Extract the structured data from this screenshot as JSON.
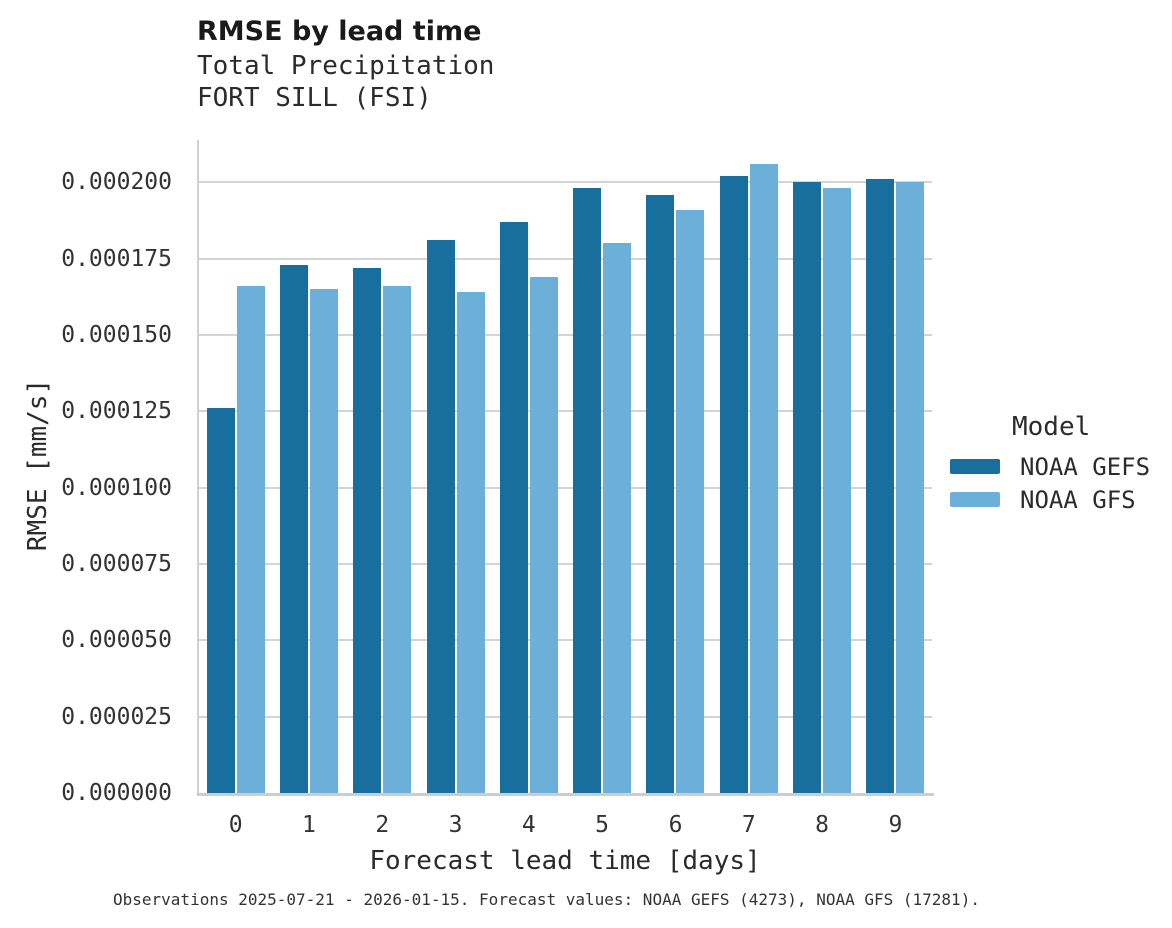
{
  "chart_data": {
    "type": "bar",
    "title": "RMSE by lead time",
    "subtitle": [
      "Total Precipitation",
      "FORT SILL (FSI)"
    ],
    "xlabel": "Forecast lead time [days]",
    "ylabel": "RMSE [mm/s]",
    "caption": "Observations 2025-07-21 - 2026-01-15. Forecast values: NOAA GEFS (4273), NOAA GFS (17281).",
    "categories": [
      "0",
      "1",
      "2",
      "3",
      "4",
      "5",
      "6",
      "7",
      "8",
      "9"
    ],
    "series": [
      {
        "name": "NOAA GEFS",
        "color": "#186e9c",
        "values": [
          0.000126,
          0.000173,
          0.000172,
          0.000181,
          0.000187,
          0.000198,
          0.000196,
          0.000202,
          0.0002,
          0.000201
        ]
      },
      {
        "name": "NOAA GFS",
        "color": "#6cb0d9",
        "values": [
          0.000166,
          0.000165,
          0.000166,
          0.000164,
          0.000169,
          0.00018,
          0.000191,
          0.000206,
          0.000198,
          0.0002
        ]
      }
    ],
    "yticks": [
      0,
      2.5e-05,
      5e-05,
      7.5e-05,
      0.0001,
      0.000125,
      0.00015,
      0.000175,
      0.0002
    ],
    "ytick_labels": [
      "0.000000",
      "0.000025",
      "0.000050",
      "0.000075",
      "0.000100",
      "0.000125",
      "0.000150",
      "0.000175",
      "0.000200"
    ],
    "ylim": [
      0,
      0.00021385
    ],
    "grid": true,
    "legend_position": "right",
    "legend_title": "Model"
  }
}
